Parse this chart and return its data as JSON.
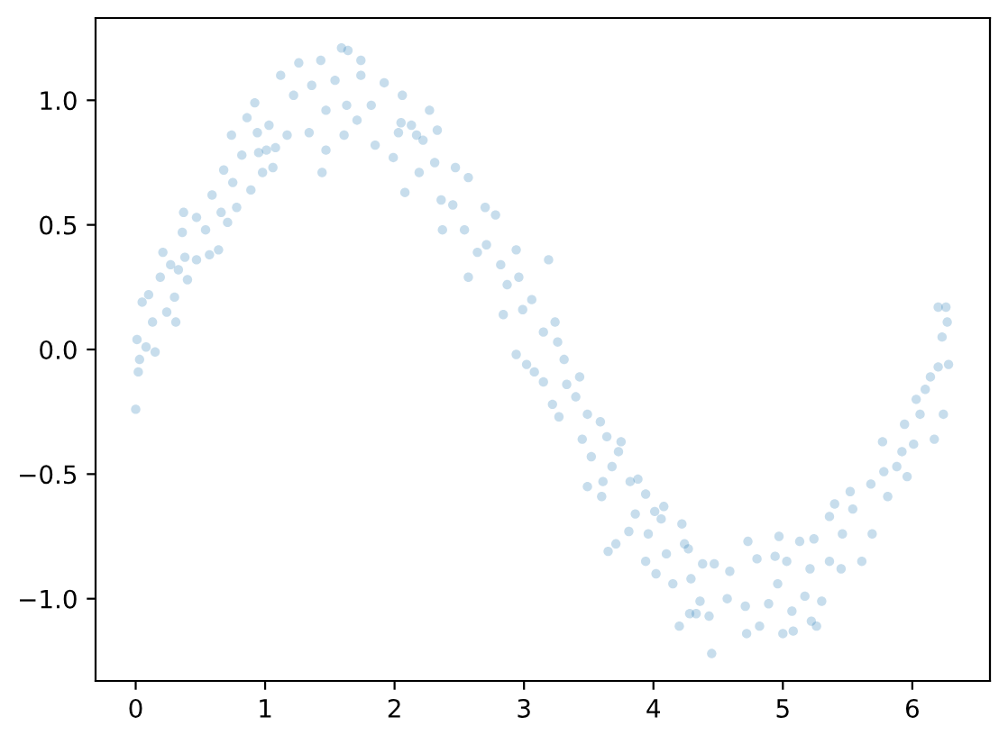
{
  "chart_data": {
    "type": "scatter",
    "marker": "circle",
    "xlim": [
      -0.31,
      6.6
    ],
    "xticks": [
      0,
      1,
      2,
      3,
      4,
      5,
      6
    ],
    "ylim": [
      -1.33,
      1.33
    ],
    "yticks": [
      {
        "value": -1,
        "label": "−1.0"
      },
      {
        "value": -0.5,
        "label": "−0.5"
      },
      {
        "value": 0,
        "label": "0.0"
      },
      {
        "value": 0.5,
        "label": "0.5"
      },
      {
        "value": 1,
        "label": "1.0"
      }
    ],
    "series": [
      {
        "color": "#1f77b4",
        "x": [
          0.0,
          0.01,
          0.02,
          0.03,
          0.05,
          0.08,
          0.1,
          0.13,
          0.15,
          0.19,
          0.21,
          0.24,
          0.27,
          0.3,
          0.31,
          0.33,
          0.37,
          0.38,
          0.4,
          0.36,
          0.47,
          0.47,
          0.54,
          0.57,
          0.59,
          0.64,
          0.66,
          0.68,
          0.71,
          0.74,
          0.75,
          0.78,
          0.82,
          0.86,
          0.89,
          0.92,
          0.94,
          0.95,
          0.98,
          1.01,
          1.03,
          1.06,
          1.08,
          1.12,
          1.17,
          1.22,
          1.26,
          1.34,
          1.36,
          1.43,
          1.44,
          1.47,
          1.47,
          1.54,
          1.59,
          1.61,
          1.63,
          1.64,
          1.71,
          1.74,
          1.74,
          1.82,
          1.85,
          1.92,
          1.99,
          2.03,
          2.05,
          2.06,
          2.08,
          2.13,
          2.17,
          2.19,
          2.22,
          2.27,
          2.31,
          2.33,
          2.36,
          2.37,
          2.45,
          2.47,
          2.54,
          2.57,
          2.57,
          2.64,
          2.7,
          2.71,
          2.78,
          2.82,
          2.84,
          2.87,
          2.94,
          2.94,
          2.96,
          2.99,
          3.02,
          3.06,
          3.08,
          3.15,
          3.15,
          3.19,
          3.22,
          3.24,
          3.26,
          3.27,
          3.31,
          3.33,
          3.4,
          3.43,
          3.45,
          3.49,
          3.49,
          3.52,
          3.59,
          3.6,
          3.61,
          3.64,
          3.65,
          3.68,
          3.71,
          3.73,
          3.75,
          3.81,
          3.82,
          3.86,
          3.88,
          3.94,
          3.94,
          3.96,
          4.01,
          4.02,
          4.06,
          4.08,
          4.1,
          4.15,
          4.2,
          4.22,
          4.24,
          4.27,
          4.28,
          4.29,
          4.33,
          4.36,
          4.38,
          4.43,
          4.45,
          4.47,
          4.57,
          4.59,
          4.71,
          4.72,
          4.73,
          4.8,
          4.82,
          4.89,
          4.94,
          4.96,
          4.97,
          5.0,
          5.03,
          5.07,
          5.08,
          5.13,
          5.17,
          5.21,
          5.22,
          5.24,
          5.26,
          5.3,
          5.36,
          5.36,
          5.4,
          5.45,
          5.46,
          5.52,
          5.54,
          5.61,
          5.68,
          5.69,
          5.77,
          5.78,
          5.81,
          5.88,
          5.92,
          5.94,
          5.96,
          6.01,
          6.03,
          6.06,
          6.1,
          6.14,
          6.17,
          6.2,
          6.2,
          6.23,
          6.24,
          6.26,
          6.27,
          6.28
        ],
        "values": [
          -0.24,
          0.04,
          -0.09,
          -0.04,
          0.19,
          0.01,
          0.22,
          0.11,
          -0.01,
          0.29,
          0.39,
          0.15,
          0.34,
          0.21,
          0.11,
          0.32,
          0.55,
          0.37,
          0.28,
          0.47,
          0.53,
          0.36,
          0.48,
          0.38,
          0.62,
          0.4,
          0.55,
          0.72,
          0.51,
          0.86,
          0.67,
          0.57,
          0.78,
          0.93,
          0.64,
          0.99,
          0.87,
          0.79,
          0.71,
          0.8,
          0.9,
          0.73,
          0.81,
          1.1,
          0.86,
          1.02,
          1.15,
          0.87,
          1.06,
          1.16,
          0.71,
          0.8,
          0.96,
          1.08,
          1.21,
          0.86,
          0.98,
          1.2,
          0.92,
          1.16,
          1.1,
          0.98,
          0.82,
          1.07,
          0.77,
          0.87,
          0.91,
          1.02,
          0.63,
          0.9,
          0.86,
          0.71,
          0.84,
          0.96,
          0.75,
          0.88,
          0.6,
          0.48,
          0.58,
          0.73,
          0.48,
          0.69,
          0.29,
          0.39,
          0.57,
          0.42,
          0.54,
          0.34,
          0.14,
          0.26,
          0.4,
          -0.02,
          0.29,
          0.16,
          -0.06,
          0.2,
          -0.09,
          0.07,
          -0.13,
          0.36,
          -0.22,
          0.11,
          0.03,
          -0.27,
          -0.04,
          -0.14,
          -0.19,
          -0.11,
          -0.36,
          -0.26,
          -0.55,
          -0.43,
          -0.29,
          -0.59,
          -0.53,
          -0.35,
          -0.81,
          -0.47,
          -0.78,
          -0.41,
          -0.37,
          -0.73,
          -0.53,
          -0.66,
          -0.52,
          -0.58,
          -0.85,
          -0.74,
          -0.65,
          -0.9,
          -0.68,
          -0.63,
          -0.82,
          -0.94,
          -1.11,
          -0.7,
          -0.78,
          -0.8,
          -1.06,
          -0.92,
          -1.06,
          -1.01,
          -0.86,
          -1.07,
          -1.22,
          -0.86,
          -1.0,
          -0.89,
          -1.03,
          -1.14,
          -0.77,
          -0.84,
          -1.11,
          -1.02,
          -0.83,
          -0.94,
          -0.75,
          -1.14,
          -0.85,
          -1.05,
          -1.13,
          -0.77,
          -0.99,
          -0.88,
          -1.09,
          -0.76,
          -1.11,
          -1.01,
          -0.67,
          -0.85,
          -0.62,
          -0.88,
          -0.74,
          -0.57,
          -0.64,
          -0.85,
          -0.54,
          -0.74,
          -0.37,
          -0.49,
          -0.59,
          -0.47,
          -0.41,
          -0.3,
          -0.51,
          -0.38,
          -0.2,
          -0.26,
          -0.16,
          -0.11,
          -0.36,
          -0.07,
          0.17,
          0.05,
          -0.26,
          0.17,
          0.11,
          -0.06
        ]
      }
    ]
  }
}
